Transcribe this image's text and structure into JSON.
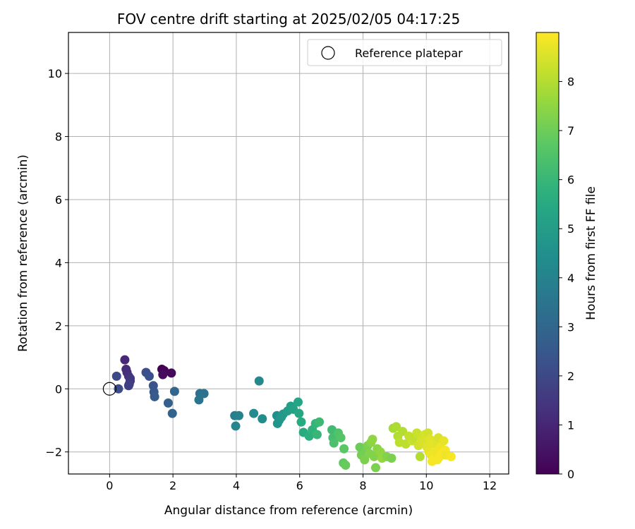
{
  "chart_data": {
    "type": "scatter",
    "title": "FOV centre drift starting at 2025/02/05 04:17:25",
    "xlabel": "Angular distance from reference (arcmin)",
    "ylabel": "Rotation from reference (arcmin)",
    "xlim": [
      -1.3,
      12.6
    ],
    "ylim": [
      -2.7,
      11.3
    ],
    "x_ticks": [
      0,
      2,
      4,
      6,
      8,
      10,
      12
    ],
    "y_ticks": [
      -2,
      0,
      2,
      4,
      6,
      8,
      10
    ],
    "grid": true,
    "legend": {
      "position": "top-right",
      "entries": [
        "Reference platepar"
      ]
    },
    "reference_point": {
      "x": 0,
      "y": 0,
      "label": "Reference platepar"
    },
    "colorbar": {
      "label": "Hours from first FF file",
      "colormap": "viridis",
      "range": [
        0,
        9.0
      ],
      "ticks": [
        0,
        1,
        2,
        3,
        4,
        5,
        6,
        7,
        8
      ]
    },
    "points": [
      {
        "x": 1.65,
        "y": 0.62,
        "c": 0.0
      },
      {
        "x": 1.72,
        "y": 0.58,
        "c": 0.1
      },
      {
        "x": 1.95,
        "y": 0.5,
        "c": 0.2
      },
      {
        "x": 1.68,
        "y": 0.45,
        "c": 0.3
      },
      {
        "x": 0.48,
        "y": 0.92,
        "c": 1.0
      },
      {
        "x": 0.52,
        "y": 0.62,
        "c": 1.1
      },
      {
        "x": 0.55,
        "y": 0.52,
        "c": 1.2
      },
      {
        "x": 0.6,
        "y": 0.4,
        "c": 1.3
      },
      {
        "x": 0.65,
        "y": 0.33,
        "c": 1.4
      },
      {
        "x": 0.65,
        "y": 0.25,
        "c": 1.5
      },
      {
        "x": 0.62,
        "y": 0.15,
        "c": 1.6
      },
      {
        "x": 0.6,
        "y": 0.1,
        "c": 1.7
      },
      {
        "x": 0.22,
        "y": 0.4,
        "c": 2.0
      },
      {
        "x": 0.28,
        "y": 0.0,
        "c": 2.1
      },
      {
        "x": 1.15,
        "y": 0.52,
        "c": 2.2
      },
      {
        "x": 1.25,
        "y": 0.4,
        "c": 2.3
      },
      {
        "x": 1.38,
        "y": 0.1,
        "c": 2.4
      },
      {
        "x": 1.4,
        "y": -0.1,
        "c": 2.5
      },
      {
        "x": 1.42,
        "y": -0.25,
        "c": 2.6
      },
      {
        "x": 1.85,
        "y": -0.45,
        "c": 2.8
      },
      {
        "x": 1.98,
        "y": -0.78,
        "c": 2.9
      },
      {
        "x": 2.05,
        "y": -0.08,
        "c": 3.0
      },
      {
        "x": 2.85,
        "y": -0.15,
        "c": 3.3
      },
      {
        "x": 2.98,
        "y": -0.15,
        "c": 3.4
      },
      {
        "x": 2.82,
        "y": -0.35,
        "c": 3.5
      },
      {
        "x": 3.95,
        "y": -0.85,
        "c": 3.9
      },
      {
        "x": 4.08,
        "y": -0.85,
        "c": 4.0
      },
      {
        "x": 3.98,
        "y": -1.18,
        "c": 4.1
      },
      {
        "x": 4.72,
        "y": 0.25,
        "c": 4.2
      },
      {
        "x": 4.55,
        "y": -0.78,
        "c": 4.3
      },
      {
        "x": 4.82,
        "y": -0.95,
        "c": 4.4
      },
      {
        "x": 5.28,
        "y": -0.85,
        "c": 4.5
      },
      {
        "x": 5.35,
        "y": -1.0,
        "c": 4.6
      },
      {
        "x": 5.3,
        "y": -1.1,
        "c": 4.7
      },
      {
        "x": 5.42,
        "y": -0.9,
        "c": 4.8
      },
      {
        "x": 5.48,
        "y": -0.8,
        "c": 4.9
      },
      {
        "x": 5.62,
        "y": -0.7,
        "c": 5.0
      },
      {
        "x": 5.72,
        "y": -0.55,
        "c": 5.1
      },
      {
        "x": 5.8,
        "y": -0.65,
        "c": 5.2
      },
      {
        "x": 5.95,
        "y": -0.42,
        "c": 5.3
      },
      {
        "x": 5.98,
        "y": -0.78,
        "c": 5.4
      },
      {
        "x": 6.05,
        "y": -1.05,
        "c": 5.5
      },
      {
        "x": 6.12,
        "y": -1.38,
        "c": 5.6
      },
      {
        "x": 6.3,
        "y": -1.5,
        "c": 5.7
      },
      {
        "x": 6.4,
        "y": -1.3,
        "c": 5.8
      },
      {
        "x": 6.5,
        "y": -1.1,
        "c": 5.9
      },
      {
        "x": 6.55,
        "y": -1.45,
        "c": 6.0
      },
      {
        "x": 6.62,
        "y": -1.05,
        "c": 6.1
      },
      {
        "x": 7.02,
        "y": -1.3,
        "c": 6.2
      },
      {
        "x": 7.05,
        "y": -1.55,
        "c": 6.3
      },
      {
        "x": 7.08,
        "y": -1.72,
        "c": 6.4
      },
      {
        "x": 7.22,
        "y": -1.4,
        "c": 6.5
      },
      {
        "x": 7.3,
        "y": -1.55,
        "c": 6.6
      },
      {
        "x": 7.4,
        "y": -1.9,
        "c": 6.7
      },
      {
        "x": 7.38,
        "y": -2.35,
        "c": 6.8
      },
      {
        "x": 7.45,
        "y": -2.42,
        "c": 6.9
      },
      {
        "x": 7.9,
        "y": -1.85,
        "c": 7.0
      },
      {
        "x": 7.95,
        "y": -2.1,
        "c": 7.1
      },
      {
        "x": 8.05,
        "y": -2.25,
        "c": 7.2
      },
      {
        "x": 8.1,
        "y": -1.95,
        "c": 7.1
      },
      {
        "x": 8.15,
        "y": -1.8,
        "c": 7.2
      },
      {
        "x": 8.2,
        "y": -2.05,
        "c": 7.3
      },
      {
        "x": 8.25,
        "y": -1.7,
        "c": 7.4
      },
      {
        "x": 8.3,
        "y": -1.6,
        "c": 7.5
      },
      {
        "x": 8.35,
        "y": -2.15,
        "c": 7.3
      },
      {
        "x": 8.4,
        "y": -2.5,
        "c": 7.2
      },
      {
        "x": 8.45,
        "y": -1.9,
        "c": 7.4
      },
      {
        "x": 8.55,
        "y": -2.0,
        "c": 7.5
      },
      {
        "x": 8.6,
        "y": -2.2,
        "c": 7.6
      },
      {
        "x": 8.75,
        "y": -2.15,
        "c": 7.3
      },
      {
        "x": 8.9,
        "y": -2.2,
        "c": 7.2
      },
      {
        "x": 8.95,
        "y": -1.25,
        "c": 7.8
      },
      {
        "x": 9.05,
        "y": -1.2,
        "c": 7.9
      },
      {
        "x": 9.1,
        "y": -1.5,
        "c": 8.0
      },
      {
        "x": 9.15,
        "y": -1.7,
        "c": 8.1
      },
      {
        "x": 9.25,
        "y": -1.35,
        "c": 8.0
      },
      {
        "x": 9.35,
        "y": -1.75,
        "c": 8.1
      },
      {
        "x": 9.45,
        "y": -1.5,
        "c": 8.2
      },
      {
        "x": 9.55,
        "y": -1.65,
        "c": 8.3
      },
      {
        "x": 9.6,
        "y": -1.55,
        "c": 8.2
      },
      {
        "x": 9.7,
        "y": -1.4,
        "c": 8.3
      },
      {
        "x": 9.75,
        "y": -1.8,
        "c": 8.4
      },
      {
        "x": 9.8,
        "y": -2.15,
        "c": 8.0
      },
      {
        "x": 9.85,
        "y": -1.6,
        "c": 8.4
      },
      {
        "x": 9.9,
        "y": -1.7,
        "c": 8.5
      },
      {
        "x": 9.95,
        "y": -1.45,
        "c": 8.5
      },
      {
        "x": 10.02,
        "y": -1.85,
        "c": 8.6
      },
      {
        "x": 10.05,
        "y": -1.4,
        "c": 8.4
      },
      {
        "x": 10.08,
        "y": -2.0,
        "c": 8.7
      },
      {
        "x": 10.12,
        "y": -1.6,
        "c": 8.6
      },
      {
        "x": 10.15,
        "y": -2.1,
        "c": 8.8
      },
      {
        "x": 10.18,
        "y": -2.3,
        "c": 8.9
      },
      {
        "x": 10.22,
        "y": -1.75,
        "c": 8.7
      },
      {
        "x": 10.25,
        "y": -2.2,
        "c": 8.9
      },
      {
        "x": 10.3,
        "y": -2.0,
        "c": 8.8
      },
      {
        "x": 10.32,
        "y": -1.7,
        "c": 8.6
      },
      {
        "x": 10.35,
        "y": -2.25,
        "c": 8.9
      },
      {
        "x": 10.38,
        "y": -1.55,
        "c": 8.5
      },
      {
        "x": 10.42,
        "y": -2.15,
        "c": 8.9
      },
      {
        "x": 10.45,
        "y": -1.85,
        "c": 8.8
      },
      {
        "x": 10.5,
        "y": -2.05,
        "c": 8.9
      },
      {
        "x": 10.55,
        "y": -1.65,
        "c": 8.7
      },
      {
        "x": 10.6,
        "y": -1.95,
        "c": 8.9
      },
      {
        "x": 10.62,
        "y": -2.1,
        "c": 8.8
      },
      {
        "x": 10.78,
        "y": -2.15,
        "c": 8.9
      }
    ]
  }
}
